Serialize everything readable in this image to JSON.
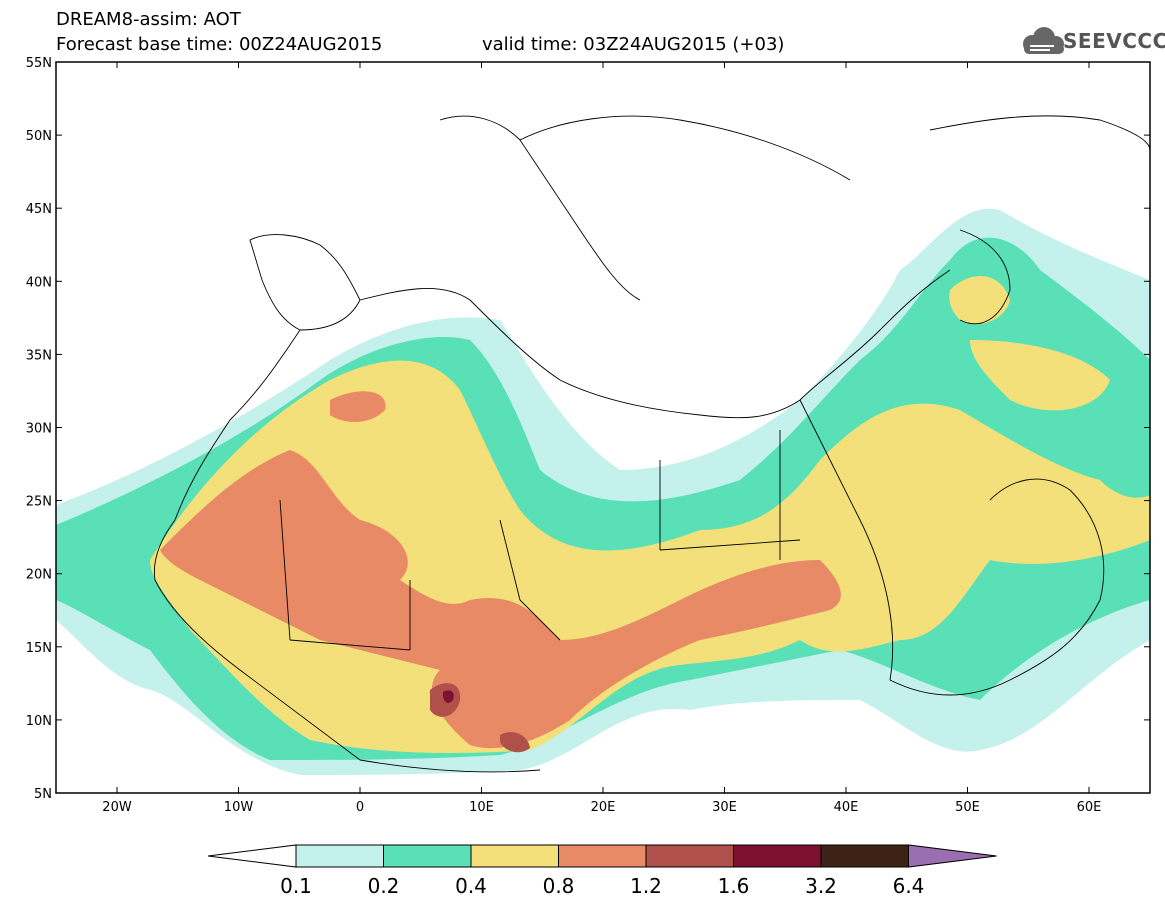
{
  "header": {
    "title": "DREAM8-assim: AOT",
    "base_time": "Forecast base time: 00Z24AUG2015",
    "valid_time": "valid time: 03Z24AUG2015 (+03)"
  },
  "logo": {
    "text": "SEEVCCC",
    "icon": "cloud-icon"
  },
  "axes": {
    "lat_labels": [
      "55N",
      "50N",
      "45N",
      "40N",
      "35N",
      "30N",
      "25N",
      "20N",
      "15N",
      "10N",
      "5N"
    ],
    "lon_labels": [
      "20W",
      "10W",
      "0",
      "10E",
      "20E",
      "30E",
      "40E",
      "50E",
      "60E"
    ]
  },
  "colorbar": {
    "labels": [
      "0.1",
      "0.2",
      "0.4",
      "0.8",
      "1.2",
      "1.6",
      "3.2",
      "6.4"
    ],
    "colors": [
      "#ffffff",
      "#c4f1ec",
      "#5ae0b6",
      "#f4e07a",
      "#e88a66",
      "#b0504a",
      "#7e1030",
      "#3d2216",
      "#9a6eb0"
    ]
  }
}
